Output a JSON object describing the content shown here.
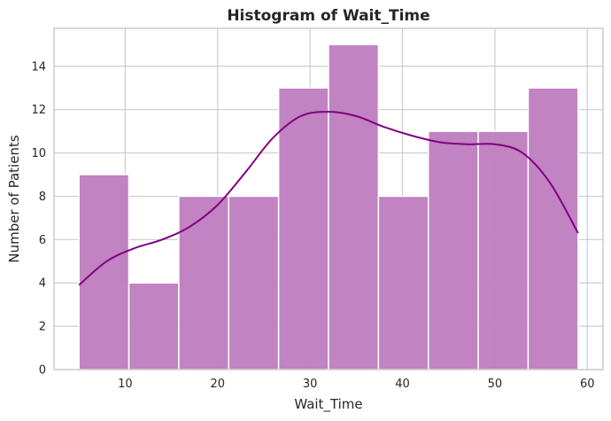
{
  "chart_data": {
    "type": "bar",
    "title": "Histogram of Wait_Time",
    "xlabel": "Wait_Time",
    "ylabel": "Number of Patients",
    "bins": [
      {
        "x0": 5.0,
        "x1": 10.4,
        "count": 9
      },
      {
        "x0": 10.4,
        "x1": 15.8,
        "count": 4
      },
      {
        "x0": 15.8,
        "x1": 21.2,
        "count": 8
      },
      {
        "x0": 21.2,
        "x1": 26.6,
        "count": 8
      },
      {
        "x0": 26.6,
        "x1": 32.0,
        "count": 13
      },
      {
        "x0": 32.0,
        "x1": 37.4,
        "count": 15
      },
      {
        "x0": 37.4,
        "x1": 42.8,
        "count": 8
      },
      {
        "x0": 42.8,
        "x1": 48.2,
        "count": 11
      },
      {
        "x0": 48.2,
        "x1": 53.6,
        "count": 11
      },
      {
        "x0": 53.6,
        "x1": 59.0,
        "count": 13
      }
    ],
    "kde": {
      "x": [
        5,
        8,
        11,
        14,
        17,
        20,
        23,
        26,
        29,
        32,
        35,
        38,
        41,
        44,
        47,
        50,
        53,
        56,
        59
      ],
      "y": [
        3.9,
        5.0,
        5.6,
        6.0,
        6.6,
        7.6,
        9.1,
        10.7,
        11.7,
        11.9,
        11.7,
        11.2,
        10.8,
        10.5,
        10.4,
        10.4,
        10.0,
        8.6,
        6.3
      ]
    },
    "xlim": [
      2.3,
      61.7
    ],
    "ylim": [
      0,
      15.75
    ],
    "xticks": [
      10,
      20,
      30,
      40,
      50,
      60
    ],
    "yticks": [
      0,
      2,
      4,
      6,
      8,
      10,
      12,
      14
    ],
    "grid": true,
    "colors": {
      "bar_fill": "#bf7fbf",
      "bar_edge": "#ffffff",
      "kde_line": "#800080",
      "grid": "#cccccc",
      "spine": "#cccccc"
    }
  }
}
